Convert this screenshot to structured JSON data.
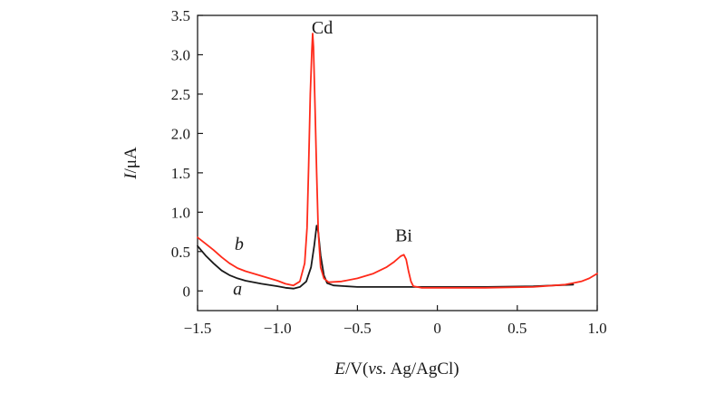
{
  "chart_data": {
    "type": "line",
    "title": "",
    "xlabel": {
      "italic": "E",
      "mid": "/V(",
      "italic2": "vs.",
      "rest": " Ag/AgCl)"
    },
    "ylabel": {
      "italic": "I",
      "rest": "/μA"
    },
    "xlim": [
      -1.5,
      1.0
    ],
    "ylim": [
      -0.25,
      3.5
    ],
    "xticks": [
      -1.5,
      -1.0,
      -0.5,
      0,
      0.5,
      1.0
    ],
    "xtick_labels": [
      "−1.5",
      "−1.0",
      "−0.5",
      "0",
      "0.5",
      "1.0"
    ],
    "yticks": [
      0,
      0.5,
      1.0,
      1.5,
      2.0,
      2.5,
      3.0,
      3.5
    ],
    "ytick_labels": [
      "0",
      "0.5",
      "1.0",
      "1.5",
      "2.0",
      "2.5",
      "3.0",
      "3.5"
    ],
    "annotations": [
      {
        "text": "Cd",
        "x": -0.72,
        "y": 3.27
      },
      {
        "text": "Bi",
        "x": -0.21,
        "y": 0.63
      }
    ],
    "series": [
      {
        "name": "a",
        "color": "#1a1a1a",
        "label_pos": {
          "x": -1.25,
          "y": -0.05
        },
        "points": [
          [
            -1.5,
            0.57
          ],
          [
            -1.45,
            0.45
          ],
          [
            -1.4,
            0.35
          ],
          [
            -1.35,
            0.26
          ],
          [
            -1.3,
            0.2
          ],
          [
            -1.25,
            0.16
          ],
          [
            -1.2,
            0.13
          ],
          [
            -1.1,
            0.09
          ],
          [
            -1.0,
            0.06
          ],
          [
            -0.95,
            0.04
          ],
          [
            -0.9,
            0.03
          ],
          [
            -0.86,
            0.05
          ],
          [
            -0.82,
            0.12
          ],
          [
            -0.79,
            0.3
          ],
          [
            -0.77,
            0.58
          ],
          [
            -0.755,
            0.83
          ],
          [
            -0.745,
            0.75
          ],
          [
            -0.73,
            0.45
          ],
          [
            -0.71,
            0.2
          ],
          [
            -0.69,
            0.1
          ],
          [
            -0.65,
            0.07
          ],
          [
            -0.5,
            0.05
          ],
          [
            -0.3,
            0.05
          ],
          [
            0,
            0.05
          ],
          [
            0.3,
            0.05
          ],
          [
            0.6,
            0.06
          ],
          [
            0.85,
            0.08
          ]
        ]
      },
      {
        "name": "b",
        "color": "#ff2a1a",
        "label_pos": {
          "x": -1.24,
          "y": 0.52
        },
        "points": [
          [
            -1.5,
            0.68
          ],
          [
            -1.45,
            0.6
          ],
          [
            -1.4,
            0.52
          ],
          [
            -1.35,
            0.43
          ],
          [
            -1.3,
            0.35
          ],
          [
            -1.25,
            0.29
          ],
          [
            -1.2,
            0.25
          ],
          [
            -1.1,
            0.19
          ],
          [
            -1.0,
            0.13
          ],
          [
            -0.95,
            0.09
          ],
          [
            -0.9,
            0.07
          ],
          [
            -0.86,
            0.12
          ],
          [
            -0.83,
            0.35
          ],
          [
            -0.815,
            0.8
          ],
          [
            -0.805,
            1.6
          ],
          [
            -0.795,
            2.5
          ],
          [
            -0.785,
            3.05
          ],
          [
            -0.78,
            3.27
          ],
          [
            -0.775,
            3.1
          ],
          [
            -0.765,
            2.3
          ],
          [
            -0.755,
            1.5
          ],
          [
            -0.745,
            0.75
          ],
          [
            -0.73,
            0.3
          ],
          [
            -0.71,
            0.16
          ],
          [
            -0.68,
            0.11
          ],
          [
            -0.6,
            0.12
          ],
          [
            -0.5,
            0.16
          ],
          [
            -0.4,
            0.22
          ],
          [
            -0.32,
            0.3
          ],
          [
            -0.27,
            0.37
          ],
          [
            -0.23,
            0.44
          ],
          [
            -0.21,
            0.46
          ],
          [
            -0.195,
            0.4
          ],
          [
            -0.18,
            0.25
          ],
          [
            -0.165,
            0.12
          ],
          [
            -0.15,
            0.06
          ],
          [
            -0.1,
            0.04
          ],
          [
            0,
            0.04
          ],
          [
            0.3,
            0.04
          ],
          [
            0.6,
            0.05
          ],
          [
            0.8,
            0.08
          ],
          [
            0.9,
            0.12
          ],
          [
            0.95,
            0.16
          ],
          [
            1.0,
            0.22
          ]
        ]
      }
    ]
  }
}
